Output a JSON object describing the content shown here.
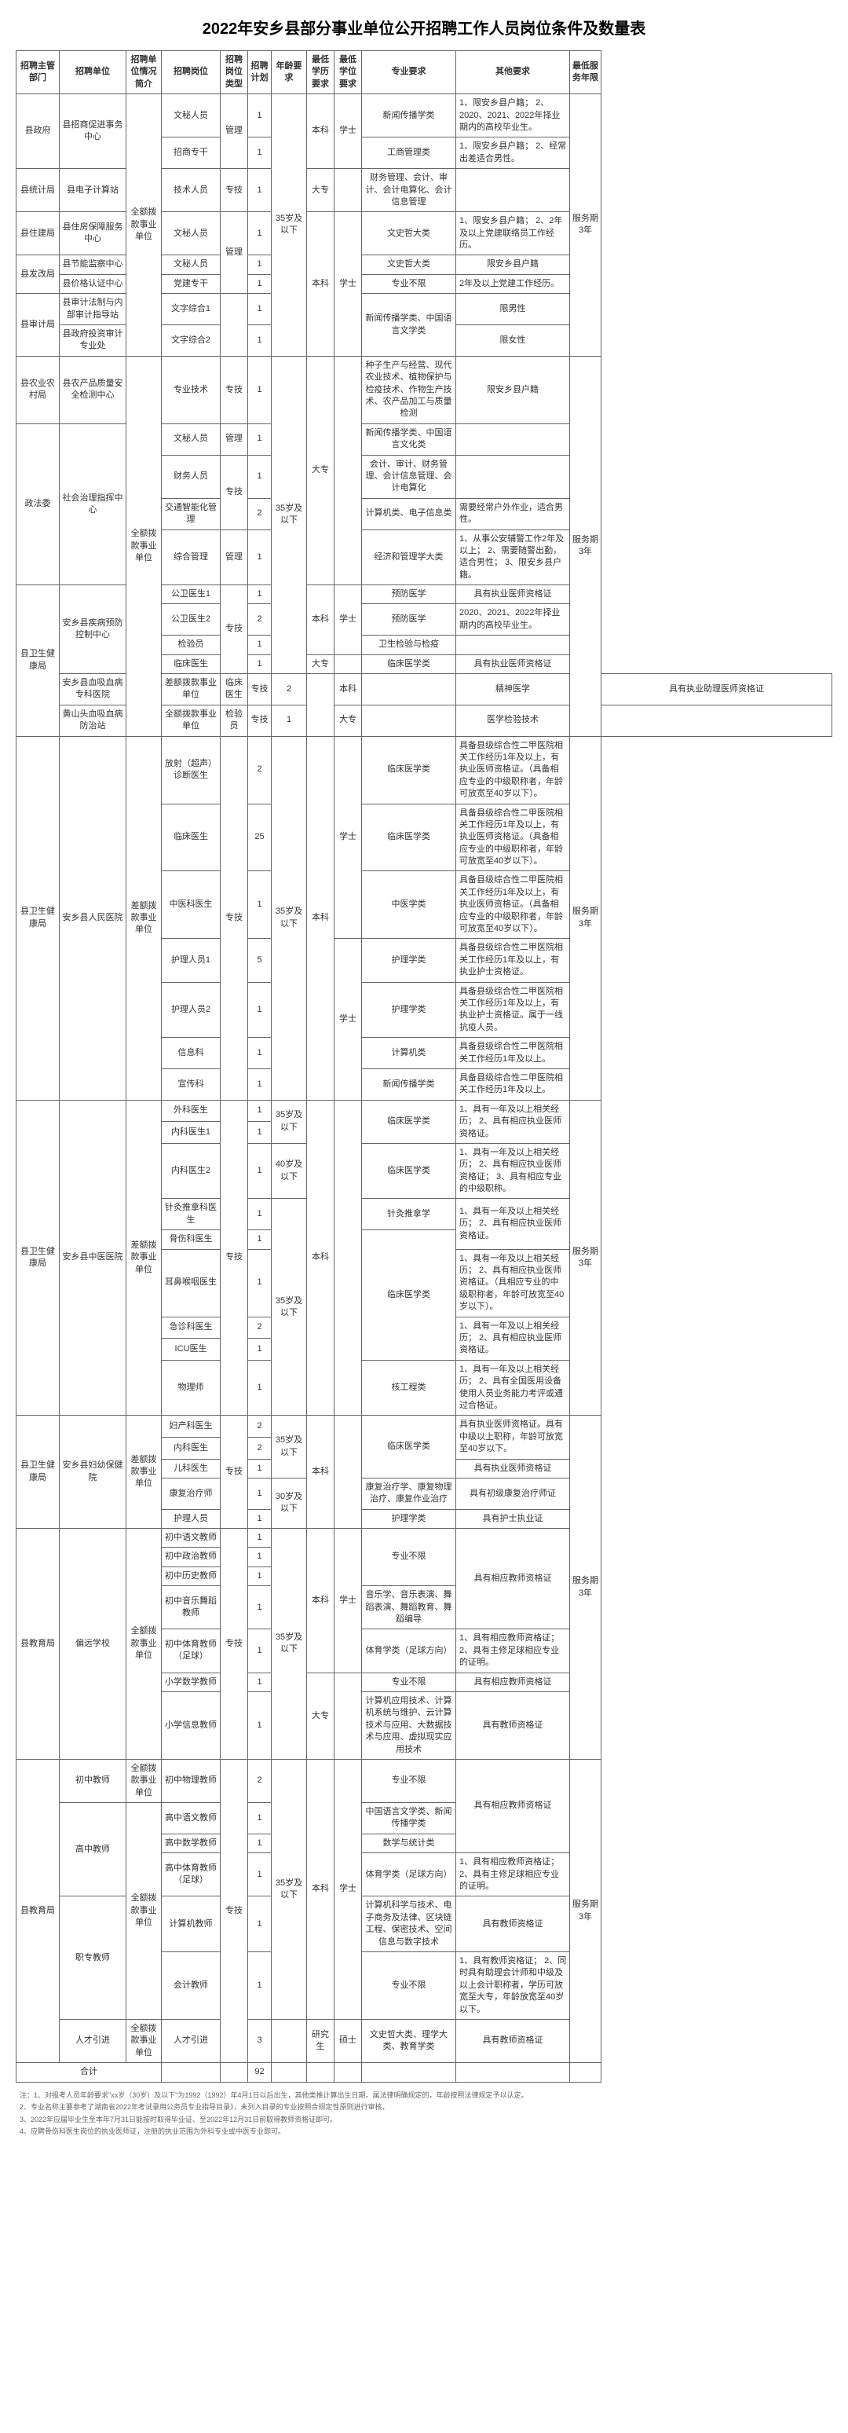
{
  "title": "2022年安乡县部分事业单位公开招聘工作人员岗位条件及数量表",
  "headers": {
    "dept": "招聘主管部门",
    "unit": "招聘单位",
    "situation": "招聘单位情况简介",
    "position": "招聘岗位",
    "type": "招聘岗位类型",
    "plan": "招聘计划",
    "age": "年龄要求",
    "edu": "最低学历要求",
    "degree": "最低学位要求",
    "major": "专业要求",
    "other": "其他要求",
    "service": "最低服务年限"
  },
  "situation_full": "全额拨款事业单位",
  "situation_diff": "差额拨款事业单位",
  "age35": "35岁及以下",
  "age40": "40岁及以下",
  "age30": "30岁及以下",
  "benke": "本科",
  "dazhuan": "大专",
  "xueshi": "学士",
  "yanjiusheng": "研究生",
  "shuoshi": "硕士",
  "service3": "服务期3年",
  "total_label": "合计",
  "total_value": "92",
  "rows": {
    "r1": {
      "dept": "县政府",
      "unit": "县招商促进事务中心",
      "pos": "文秘人员",
      "type": "管理",
      "plan": "1",
      "major": "新闻传播学类",
      "other": "1、限安乡县户籍；\n2、2020、2021、2022年择业期内的高校毕业生。"
    },
    "r2": {
      "pos": "招商专干",
      "plan": "1",
      "major": "工商管理类",
      "other": "1、限安乡县户籍；\n2、经常出差适合男性。"
    },
    "r3": {
      "dept": "县统计局",
      "unit": "县电子计算站",
      "pos": "技术人员",
      "type": "专技",
      "plan": "1",
      "major": "财务管理、会计、审计、会计电算化、会计信息管理"
    },
    "r4": {
      "dept": "县住建局",
      "unit": "县住房保障服务中心",
      "pos": "文秘人员",
      "plan": "1",
      "major": "文史哲大类",
      "other": "1、限安乡县户籍；\n2、2年及以上党建联络员工作经历。"
    },
    "r5": {
      "dept": "县发改局",
      "unit": "县节能监察中心",
      "pos": "文秘人员",
      "plan": "1",
      "major": "文史哲大类",
      "other": "限安乡县户籍"
    },
    "r6": {
      "unit": "县价格认证中心",
      "pos": "党建专干",
      "type": "管理",
      "plan": "1",
      "major": "专业不限",
      "other": "2年及以上党建工作经历。"
    },
    "r7": {
      "dept": "县审计局",
      "unit": "县审计法制与内部审计指导站",
      "pos": "文字综合1",
      "plan": "1",
      "major": "新闻传播学类、中国语言文学类",
      "other": "限男性"
    },
    "r8": {
      "unit": "县政府投资审计专业处",
      "pos": "文字综合2",
      "plan": "1",
      "other": "限女性"
    },
    "r9": {
      "dept": "县农业农村局",
      "unit": "县农产品质量安全检测中心",
      "pos": "专业技术",
      "type": "专技",
      "plan": "1",
      "major": "种子生产与经营、现代农业技术、植物保护与检疫技术、作物生产技术、农产品加工与质量检测",
      "other": "限安乡县户籍"
    },
    "r10": {
      "dept": "政法委",
      "unit": "社会治理指挥中心",
      "pos": "文秘人员",
      "type": "管理",
      "plan": "1",
      "major": "新闻传播学类、中国语言文化类"
    },
    "r11": {
      "pos": "财务人员",
      "type": "专技",
      "plan": "1",
      "major": "会计、审计、财务管理、会计信息管理、会计电算化"
    },
    "r12": {
      "pos": "交通智能化管理",
      "plan": "2",
      "major": "计算机类、电子信息类",
      "other": "需要经常户外作业，适合男性。"
    },
    "r13": {
      "pos": "综合管理",
      "type": "管理",
      "plan": "1",
      "major": "经济和管理学大类",
      "other": "1、从事公安辅警工作2年及以上；\n2、需要随警出勤，适合男性；\n3、限安乡县户籍。"
    },
    "r14": {
      "dept": "县卫生健康局",
      "unit": "安乡县疾病预防控制中心",
      "pos": "公卫医生1",
      "type": "专技",
      "plan": "1",
      "major": "预防医学",
      "other": "具有执业医师资格证"
    },
    "r15": {
      "pos": "公卫医生2",
      "plan": "2",
      "major": "预防医学",
      "other": "2020、2021、2022年择业期内的高校毕业生。"
    },
    "r16": {
      "pos": "检验员",
      "plan": "1",
      "major": "卫生检验与检疫"
    },
    "r17": {
      "pos": "临床医生",
      "plan": "1",
      "major": "临床医学类",
      "other": "具有执业医师资格证"
    },
    "r18": {
      "unit": "安乡县血吸血病专科医院",
      "pos": "临床医生",
      "type": "专技",
      "plan": "2",
      "major": "精神医学",
      "other": "具有执业助理医师资格证"
    },
    "r19": {
      "unit": "黄山头血吸血病防治站",
      "pos": "检验员",
      "type": "专技",
      "plan": "1",
      "major": "医学检验技术"
    },
    "r20": {
      "dept": "县卫生健康局",
      "unit": "安乡县人民医院",
      "pos": "放射（超声）诊断医生",
      "type": "专技",
      "plan": "2",
      "major": "临床医学类",
      "other": "具备县级综合性二甲医院相关工作经历1年及以上，有执业医师资格证。（具备相应专业的中级职称者，年龄可放宽至40岁以下）。"
    },
    "r21": {
      "pos": "临床医生",
      "plan": "25",
      "major": "临床医学类",
      "other": "具备县级综合性二甲医院相关工作经历1年及以上，有执业医师资格证。（具备相应专业的中级职称者，年龄可放宽至40岁以下）。"
    },
    "r22": {
      "pos": "中医科医生",
      "plan": "1",
      "major": "中医学类",
      "other": "具备县级综合性二甲医院相关工作经历1年及以上，有执业医师资格证。（具备相应专业的中级职称者，年龄可放宽至40岁以下）。"
    },
    "r23": {
      "pos": "护理人员1",
      "plan": "5",
      "major": "护理学类",
      "other": "具备县级综合性二甲医院相关工作经历1年及以上，有执业护士资格证。"
    },
    "r24": {
      "pos": "护理人员2",
      "plan": "1",
      "major": "护理学类",
      "other": "具备县级综合性二甲医院相关工作经历1年及以上，有执业护士资格证。属于一线抗疫人员。"
    },
    "r25": {
      "pos": "信息科",
      "plan": "1",
      "major": "计算机类",
      "other": "具备县级综合性二甲医院相关工作经历1年及以上。"
    },
    "r26": {
      "pos": "宣传科",
      "plan": "1",
      "major": "新闻传播学类",
      "other": "具备县级综合性二甲医院相关工作经历1年及以上。"
    },
    "r27": {
      "dept": "县卫生健康局",
      "unit": "安乡县中医医院",
      "pos": "外科医生",
      "type": "专技",
      "plan": "1",
      "major": "临床医学类",
      "other": "1、具有一年及以上相关经历；\n2、具有相应执业医师资格证。"
    },
    "r28": {
      "pos": "内科医生1",
      "plan": "1"
    },
    "r29": {
      "pos": "内科医生2",
      "plan": "1",
      "major": "临床医学类",
      "other": "1、具有一年及以上相关经历；\n2、具有相应执业医师资格证；\n3、具有相应专业的中级职称。"
    },
    "r30": {
      "pos": "针灸推拿科医生",
      "plan": "1",
      "major": "针灸推拿学",
      "other": "1、具有一年及以上相关经历；\n2、具有相应执业医师资格证。"
    },
    "r31": {
      "pos": "骨伤科医生",
      "plan": "1"
    },
    "r32": {
      "pos": "耳鼻喉咽医生",
      "plan": "1",
      "major": "临床医学类",
      "other": "1、具有一年及以上相关经历；\n2、具有相应执业医师资格证。（具相应专业的中级职称者，年龄可放宽至40岁以下）。"
    },
    "r33": {
      "pos": "急诊科医生",
      "plan": "2",
      "other": "1、具有一年及以上相关经历；\n2、具有相应执业医师资格证。"
    },
    "r34": {
      "pos": "ICU医生",
      "plan": "1"
    },
    "r35": {
      "pos": "物理师",
      "plan": "1",
      "major": "核工程类",
      "other": "1、具有一年及以上相关经历；\n2、具有全国医用设备使用人员业务能力考评或通过合格证。"
    },
    "r36": {
      "dept": "县卫生健康局",
      "unit": "安乡县妇幼保健院",
      "pos": "妇产科医生",
      "type": "专技",
      "plan": "2",
      "major": "临床医学类",
      "other": "具有执业医师资格证。具有中级以上职称，年龄可放宽至40岁以下。"
    },
    "r37": {
      "pos": "内科医生",
      "plan": "2"
    },
    "r38": {
      "pos": "儿科医生",
      "plan": "1",
      "other": "具有执业医师资格证"
    },
    "r39": {
      "pos": "康复治疗师",
      "plan": "1",
      "major": "康复治疗学、康复物理治疗、康复作业治疗",
      "other": "具有初级康复治疗师证"
    },
    "r40": {
      "pos": "护理人员",
      "plan": "1",
      "major": "护理学类",
      "other": "具有护士执业证"
    },
    "r41": {
      "dept": "县教育局",
      "unit": "偏远学校",
      "pos": "初中语文教师",
      "type": "专技",
      "plan": "1",
      "major": "专业不限",
      "other": "具有相应教师资格证"
    },
    "r42": {
      "pos": "初中政治教师",
      "plan": "1"
    },
    "r43": {
      "pos": "初中历史教师",
      "plan": "1"
    },
    "r44": {
      "pos": "初中音乐舞蹈教师",
      "plan": "1",
      "major": "音乐学、音乐表演、舞蹈表演、舞蹈教育、舞蹈编导"
    },
    "r45": {
      "pos": "初中体育教师（足球）",
      "plan": "1",
      "major": "体育学类（足球方向）",
      "other": "1、具有相应教师资格证；\n2、具有主修足球相应专业的证明。"
    },
    "r46": {
      "pos": "小学数学教师",
      "plan": "1",
      "major": "专业不限",
      "other": "具有相应教师资格证"
    },
    "r47": {
      "pos": "小学信息教师",
      "plan": "1",
      "major": "计算机应用技术、计算机系统与维护、云计算技术与应用、大数据技术与应用、虚拟现实应用技术",
      "other": "具有教师资格证"
    },
    "r48": {
      "dept": "县教育局",
      "unit": "初中教师",
      "pos": "初中物理教师",
      "plan": "2",
      "major": "专业不限"
    },
    "r49": {
      "unit": "高中教师",
      "pos": "高中语文教师",
      "plan": "1",
      "major": "中国语言文学类、新闻传播学类",
      "other": "具有相应教师资格证"
    },
    "r50": {
      "pos": "高中数学教师",
      "plan": "1",
      "major": "数学与统计类"
    },
    "r51": {
      "pos": "高中体育教师（足球）",
      "plan": "1",
      "major": "体育学类（足球方向）",
      "other": "1、具有相应教师资格证；\n2、具有主修足球相应专业的证明。"
    },
    "r52": {
      "unit": "职专教师",
      "pos": "计算机教师",
      "plan": "1",
      "major": "计算机科学与技术、电子商务及法律、区块链工程、保密技术、空间信息与数字技术",
      "other": "具有教师资格证"
    },
    "r53": {
      "pos": "会计教师",
      "plan": "1",
      "major": "专业不限",
      "other": "1、具有教师资格证；\n2、同时具有助理会计师和中级及以上会计职称者，学历可放宽至大专，年龄放宽至40岁以下。"
    },
    "r54": {
      "unit": "人才引进",
      "pos": "人才引进",
      "plan": "3",
      "major": "文史哲大类、理学大类、教育学类",
      "other": "具有教师资格证"
    }
  },
  "footnotes": [
    "注：1、对报考人员年龄要求\"xx岁（30岁）及以下\"为1992（1992）年4月1日以后出生，其他类推计算出生日期。属法律明确规定的，年龄按照法律规定予以认定。",
    "2、专业名称主要参考了湖南省2022年考试录用公务员专业指导目录》，未列入目录的专业按照合规定性原则进行审核，",
    "3、2022年应届毕业生至本年7月31日能按时取得毕业证、至2022年12月31日前取得教师资格证即可。",
    "4、应聘骨伤科医生岗位的执业医师证，注册的执业范围为外科专业或中医专业即可。"
  ]
}
